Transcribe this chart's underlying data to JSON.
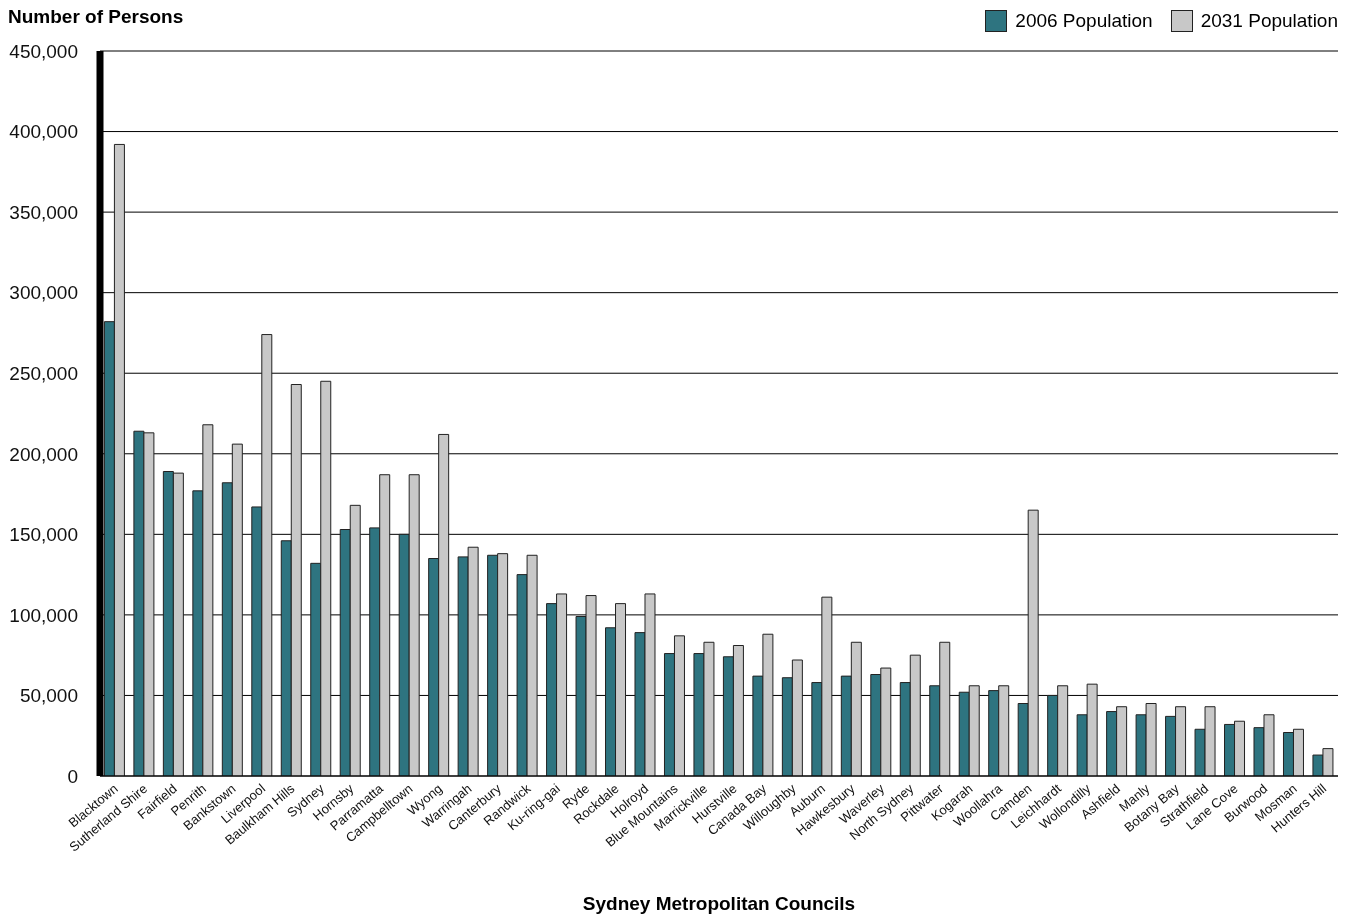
{
  "chart_data": {
    "type": "bar",
    "ylabel": "Number of Persons",
    "xlabel": "Sydney Metropolitan Councils",
    "categories": [
      "Blacktown",
      "Sutherland Shire",
      "Fairfield",
      "Penrith",
      "Bankstown",
      "Liverpool",
      "Baulkham Hills",
      "Sydney",
      "Hornsby",
      "Parramatta",
      "Campbelltown",
      "Wyong",
      "Warringah",
      "Canterbury",
      "Randwick",
      "Ku-ring-gai",
      "Ryde",
      "Rockdale",
      "Holroyd",
      "Blue Mountains",
      "Marrickville",
      "Hurstville",
      "Canada Bay",
      "Willoughby",
      "Auburn",
      "Hawkesbury",
      "Waverley",
      "North Sydney",
      "Pittwater",
      "Kogarah",
      "Woollahra",
      "Camden",
      "Leichhardt",
      "Wollondilly",
      "Ashfield",
      "Manly",
      "Botany Bay",
      "Strathfield",
      "Lane Cove",
      "Burwood",
      "Mosman",
      "Hunters Hill"
    ],
    "series": [
      {
        "name": "2006 Population",
        "color": "#2e7480",
        "values": [
          282000,
          214000,
          189000,
          177000,
          182000,
          167000,
          146000,
          132000,
          153000,
          154000,
          150000,
          135000,
          136000,
          137000,
          125000,
          107000,
          99000,
          92000,
          89000,
          76000,
          76000,
          74000,
          62000,
          61000,
          58000,
          62000,
          63000,
          58000,
          56000,
          52000,
          53000,
          45000,
          50000,
          38000,
          40000,
          38000,
          37000,
          29000,
          32000,
          30000,
          27000,
          13000
        ]
      },
      {
        "name": "2031 Population",
        "color": "#c8c8c8",
        "values": [
          392000,
          213000,
          188000,
          218000,
          206000,
          274000,
          243000,
          245000,
          168000,
          187000,
          187000,
          212000,
          142000,
          138000,
          137000,
          113000,
          112000,
          107000,
          113000,
          87000,
          83000,
          81000,
          88000,
          72000,
          111000,
          83000,
          67000,
          75000,
          83000,
          56000,
          56000,
          165000,
          56000,
          57000,
          43000,
          45000,
          43000,
          43000,
          34000,
          38000,
          29000,
          17000
        ]
      }
    ],
    "ylim": [
      0,
      450000
    ],
    "yticks": [
      {
        "value": 0,
        "label": "0"
      },
      {
        "value": 50000,
        "label": "50,000"
      },
      {
        "value": 100000,
        "label": "100,000"
      },
      {
        "value": 150000,
        "label": "150,000"
      },
      {
        "value": 200000,
        "label": "200,000"
      },
      {
        "value": 250000,
        "label": "250,000"
      },
      {
        "value": 300000,
        "label": "300,000"
      },
      {
        "value": 350000,
        "label": "350,000"
      },
      {
        "value": 400000,
        "label": "400,000"
      },
      {
        "value": 450000,
        "label": "450,000"
      }
    ],
    "grid": "y",
    "legend": "top right"
  }
}
